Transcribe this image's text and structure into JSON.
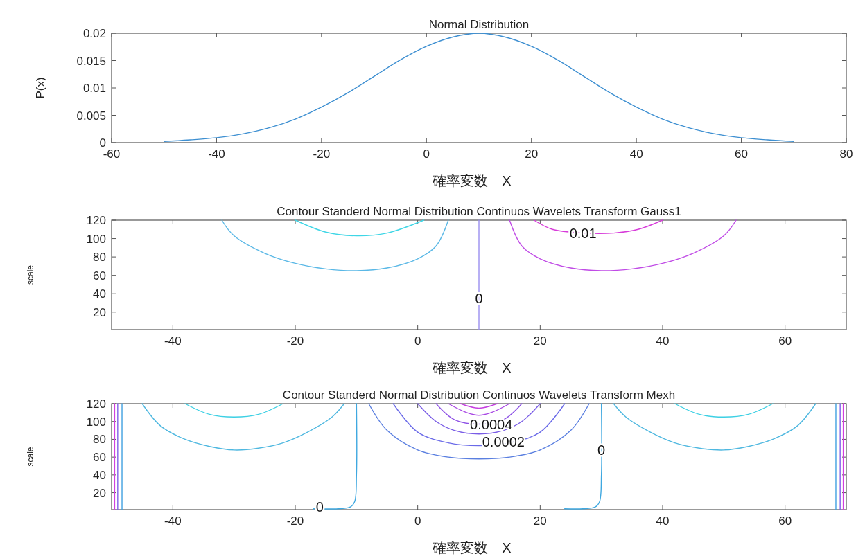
{
  "chart_data": [
    {
      "type": "line",
      "title": "Normal Distribution",
      "xlabel": "確率変数　X",
      "ylabel": "P(x)",
      "xlim": [
        -60,
        80
      ],
      "xticks": [
        -60,
        -40,
        -20,
        0,
        20,
        40,
        60,
        80
      ],
      "ylim": [
        0,
        0.02
      ],
      "yticks": [
        0,
        0.005,
        0.01,
        0.015,
        0.02
      ],
      "series": [
        {
          "color": "#3d8fd1",
          "x": [
            -50,
            -45,
            -40,
            -35,
            -30,
            -25,
            -20,
            -15,
            -10,
            -5,
            0,
            5,
            10,
            15,
            20,
            25,
            30,
            35,
            40,
            45,
            50,
            55,
            60,
            65,
            70
          ],
          "values": [
            0.0002,
            0.0005,
            0.0009,
            0.0016,
            0.0027,
            0.0043,
            0.0065,
            0.0091,
            0.0121,
            0.0151,
            0.0176,
            0.0193,
            0.02,
            0.0193,
            0.0176,
            0.0151,
            0.0121,
            0.0091,
            0.0065,
            0.0043,
            0.0027,
            0.0016,
            0.0009,
            0.0005,
            0.0002
          ]
        }
      ]
    },
    {
      "type": "line",
      "title": "Contour Standerd Normal Distribution Continuos Wavelets Transform Gauss1",
      "xlabel": "確率変数　X",
      "ylabel": "scale",
      "xlim": [
        -50,
        70
      ],
      "xticks": [
        -40,
        -20,
        0,
        20,
        40,
        60
      ],
      "ylim": [
        1,
        120
      ],
      "yticks": [
        20,
        40,
        60,
        80,
        100,
        120
      ],
      "series": [
        {
          "color": "#5ab8e6",
          "x": [
            -32,
            -30,
            -25,
            -20,
            -15,
            -10,
            -5,
            0,
            3,
            5
          ],
          "values": [
            120,
            103,
            84,
            73,
            67,
            65,
            68,
            78,
            92,
            120
          ]
        },
        {
          "color": "#3fd6e6",
          "x": [
            -20,
            -15,
            -10,
            -5,
            1
          ],
          "values": [
            120,
            107,
            103,
            106,
            120
          ]
        },
        {
          "color": "#9a8ff0",
          "x": [
            10,
            10
          ],
          "values": [
            1,
            120
          ]
        },
        {
          "color": "#c04be6",
          "x": [
            15,
            17,
            20,
            25,
            30,
            35,
            40,
            45,
            50,
            52
          ],
          "values": [
            120,
            92,
            78,
            68,
            65,
            67,
            73,
            84,
            103,
            120
          ]
        },
        {
          "color": "#d73ad9",
          "x": [
            19,
            22,
            27,
            32,
            36,
            40
          ],
          "values": [
            120,
            110,
            106,
            106,
            110,
            120
          ]
        }
      ],
      "annotations": [
        {
          "text": "0.01",
          "x": 27,
          "y": 106
        },
        {
          "text": "0",
          "x": 10,
          "y": 35
        }
      ]
    },
    {
      "type": "line",
      "title": "Contour Standerd Normal Distribution Continuos Wavelets Transform Mexh",
      "xlabel": "確率変数　X",
      "ylabel": "scale",
      "xlim": [
        -50,
        70
      ],
      "xticks": [
        -40,
        -20,
        0,
        20,
        40,
        60
      ],
      "ylim": [
        1,
        120
      ],
      "yticks": [
        20,
        40,
        60,
        80,
        100,
        120
      ],
      "series": [
        {
          "color": "#5a7fe0",
          "x": [
            -8,
            -5,
            0,
            5,
            10,
            15,
            20,
            25,
            28
          ],
          "values": [
            120,
            90,
            68,
            60,
            58,
            60,
            68,
            90,
            120
          ]
        },
        {
          "color": "#6a6ae8",
          "x": [
            -4,
            0,
            5,
            10,
            15,
            20,
            24
          ],
          "values": [
            120,
            88,
            76,
            73,
            76,
            88,
            120
          ]
        },
        {
          "color": "#7a5de6",
          "x": [
            0,
            3,
            6,
            10,
            14,
            17,
            20
          ],
          "values": [
            120,
            100,
            90,
            86,
            90,
            100,
            120
          ]
        },
        {
          "color": "#8e52e6",
          "x": [
            3,
            6,
            10,
            14,
            17
          ],
          "values": [
            120,
            102,
            97,
            102,
            120
          ]
        },
        {
          "color": "#a948e4",
          "x": [
            5,
            8,
            10,
            12,
            15
          ],
          "values": [
            120,
            110,
            107,
            110,
            120
          ]
        },
        {
          "color": "#c640e0",
          "x": [
            7,
            10,
            13
          ],
          "values": [
            120,
            115,
            120
          ]
        },
        {
          "color": "#4fb8e0",
          "x": [
            -45,
            -42,
            -38,
            -34,
            -30,
            -26,
            -22,
            -18,
            -14,
            -12
          ],
          "values": [
            120,
            95,
            80,
            72,
            68,
            70,
            76,
            88,
            105,
            120
          ]
        },
        {
          "color": "#3dd0e4",
          "x": [
            -38,
            -34,
            -30,
            -26,
            -22
          ],
          "values": [
            120,
            108,
            105,
            108,
            120
          ]
        },
        {
          "color": "#4fb8e0",
          "x": [
            65,
            62,
            58,
            54,
            50,
            46,
            42,
            38,
            34,
            32
          ],
          "values": [
            120,
            95,
            80,
            72,
            68,
            70,
            76,
            88,
            105,
            120
          ]
        },
        {
          "color": "#3dd0e4",
          "x": [
            58,
            54,
            50,
            46,
            42
          ],
          "values": [
            120,
            108,
            105,
            108,
            120
          ]
        },
        {
          "color": "#3fa8e0",
          "x": [
            -17,
            -13,
            -11,
            -10.3,
            -10,
            -10
          ],
          "values": [
            2,
            2,
            4,
            10,
            40,
            120
          ]
        },
        {
          "color": "#3fa8e0",
          "x": [
            24,
            27,
            29,
            29.7,
            30,
            30
          ],
          "values": [
            2,
            2,
            4,
            10,
            40,
            120
          ]
        },
        {
          "color": "#d040e0",
          "x": [
            -49.5,
            -49.5
          ],
          "values": [
            1,
            120
          ]
        },
        {
          "color": "#8060e8",
          "x": [
            -49,
            -49
          ],
          "values": [
            1,
            120
          ]
        },
        {
          "color": "#40a0e0",
          "x": [
            -48.3,
            -48.3
          ],
          "values": [
            1,
            120
          ]
        },
        {
          "color": "#d040e0",
          "x": [
            69.5,
            69.5
          ],
          "values": [
            1,
            120
          ]
        },
        {
          "color": "#8060e8",
          "x": [
            69,
            69
          ],
          "values": [
            1,
            120
          ]
        },
        {
          "color": "#40a0e0",
          "x": [
            68.3,
            68.3
          ],
          "values": [
            1,
            120
          ]
        }
      ],
      "annotations": [
        {
          "text": "0.0004",
          "x": 12,
          "y": 97
        },
        {
          "text": "0.0002",
          "x": 14,
          "y": 77
        },
        {
          "text": "0",
          "x": -16,
          "y": 4
        },
        {
          "text": "0",
          "x": 30,
          "y": 68
        }
      ]
    }
  ]
}
